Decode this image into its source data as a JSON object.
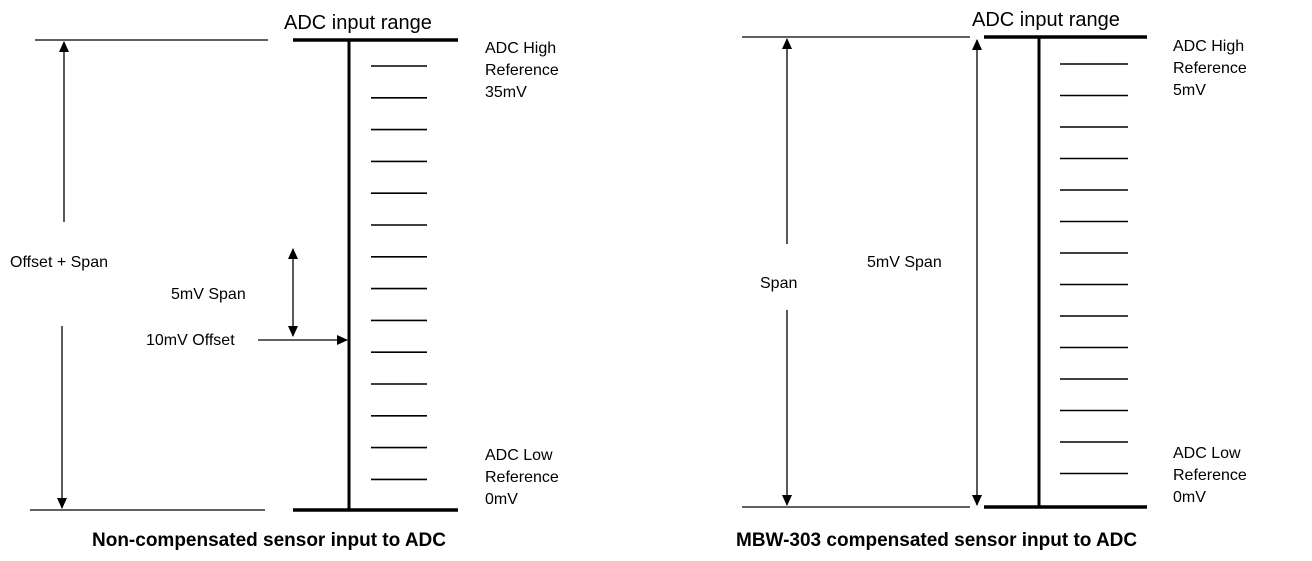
{
  "left_panel": {
    "title": "ADC input range",
    "high_ref": [
      "ADC High",
      "Reference",
      "35mV"
    ],
    "low_ref": [
      "ADC Low",
      "Reference",
      "0mV"
    ],
    "offset_span_label": "Offset + Span",
    "span_label": "5mV Span",
    "offset_label": "10mV Offset",
    "caption": "Non-compensated sensor input to ADC"
  },
  "right_panel": {
    "title": "ADC input range",
    "high_ref": [
      "ADC High",
      "Reference",
      "5mV"
    ],
    "low_ref": [
      "ADC Low",
      "Reference",
      "0mV"
    ],
    "span_outer_label": "Span",
    "span_inner_label": "5mV Span",
    "caption": "MBW-303 compensated sensor input to ADC"
  }
}
